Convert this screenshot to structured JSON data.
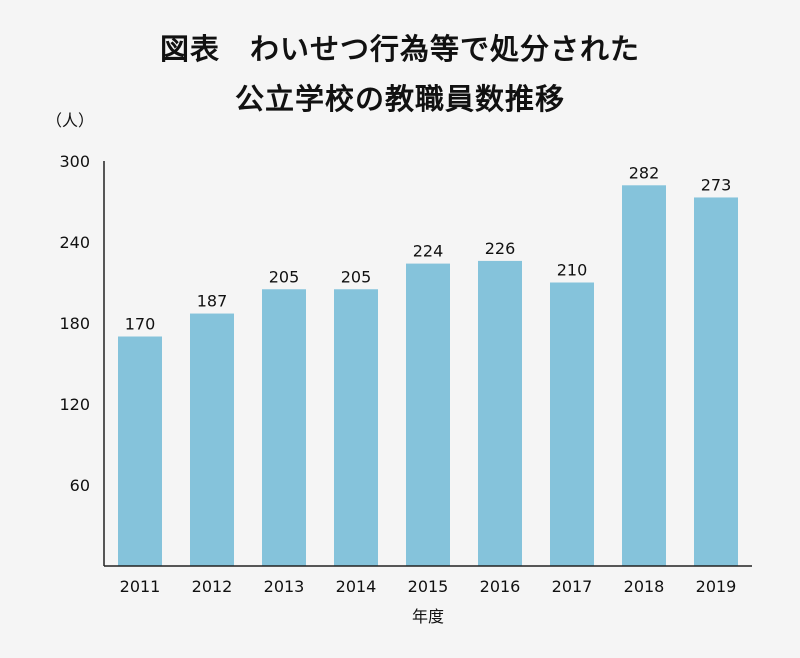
{
  "chart_data": {
    "type": "bar",
    "title_line1": "図表　わいせつ行為等で処分された",
    "title_line2": "公立学校の教職員数推移",
    "ylabel": "（人）",
    "xlabel": "年度",
    "categories": [
      "2011",
      "2012",
      "2013",
      "2014",
      "2015",
      "2016",
      "2017",
      "2018",
      "2019"
    ],
    "values": [
      170,
      187,
      205,
      205,
      224,
      226,
      210,
      282,
      273
    ],
    "ylim": [
      0,
      300
    ],
    "yticks": [
      60,
      120,
      180,
      240,
      300
    ],
    "bar_color": "#85c3db",
    "axis_color": "#222222",
    "grid": false
  }
}
